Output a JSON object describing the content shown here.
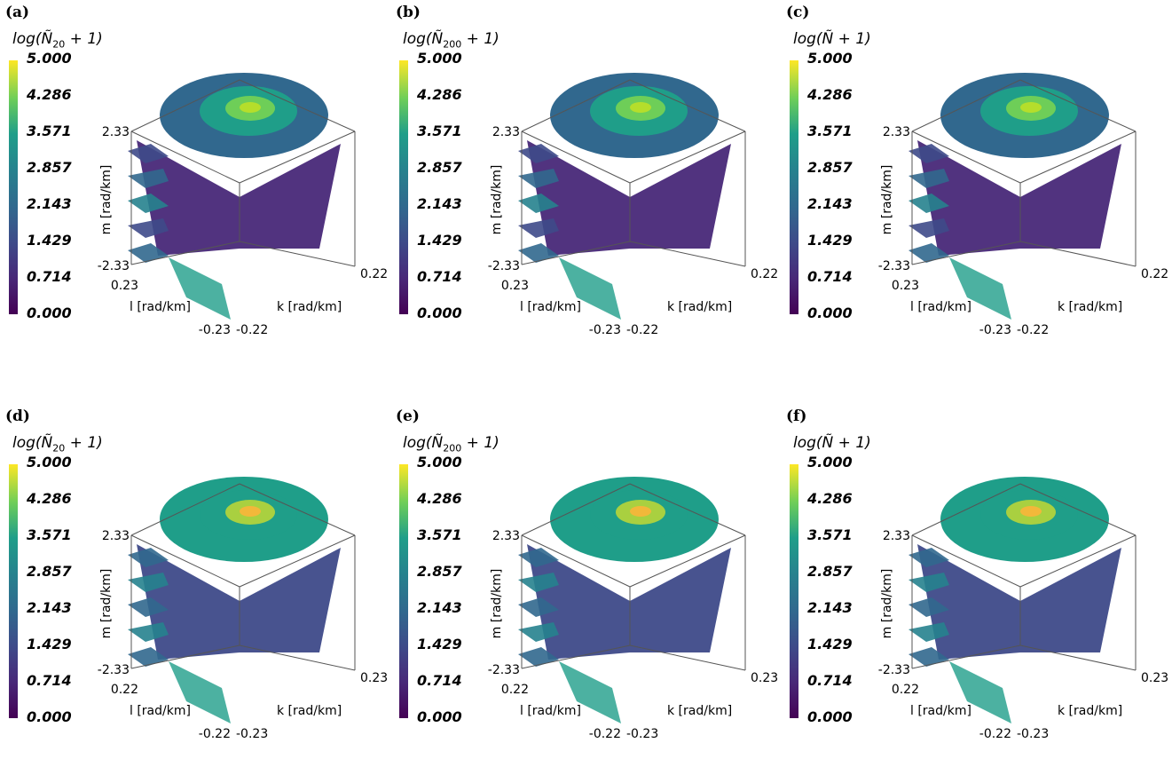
{
  "colors": {
    "viridis": [
      "#440154",
      "#482878",
      "#3e4a89",
      "#31688e",
      "#26828e",
      "#1f9e89",
      "#6ece58",
      "#fde725"
    ],
    "cube_edge": "#555555"
  },
  "colorbar_ticks": [
    "5.000",
    "4.286",
    "3.571",
    "2.857",
    "2.143",
    "1.429",
    "0.714",
    "0.000"
  ],
  "chart_data": [
    {
      "type": "heatmap",
      "panel": "(a)",
      "colorbar_title": "log(Ñ20 + 1)",
      "colorbar_range": [
        0,
        5
      ],
      "ylabel": "m [rad/km]",
      "xlabel": "l [rad/km]",
      "zlabel": "k [rad/km]",
      "m_ticks": [
        "2.33",
        "-2.33"
      ],
      "l_ticks": [
        "0.23",
        "-0.23"
      ],
      "k_ticks": [
        "0.22",
        "-0.22"
      ]
    },
    {
      "type": "heatmap",
      "panel": "(b)",
      "colorbar_title": "log(Ñ200 + 1)",
      "colorbar_range": [
        0,
        5
      ],
      "ylabel": "m [rad/km]",
      "xlabel": "l [rad/km]",
      "zlabel": "k [rad/km]",
      "m_ticks": [
        "2.33",
        "-2.33"
      ],
      "l_ticks": [
        "0.23",
        "-0.23"
      ],
      "k_ticks": [
        "0.22",
        "-0.22"
      ]
    },
    {
      "type": "heatmap",
      "panel": "(c)",
      "colorbar_title": "log(Ñ + 1)",
      "colorbar_range": [
        0,
        5
      ],
      "ylabel": "m [rad/km]",
      "xlabel": "l [rad/km]",
      "zlabel": "k [rad/km]",
      "m_ticks": [
        "2.33",
        "-2.33"
      ],
      "l_ticks": [
        "0.23",
        "-0.23"
      ],
      "k_ticks": [
        "0.22",
        "-0.22"
      ]
    },
    {
      "type": "heatmap",
      "panel": "(d)",
      "colorbar_title": "log(Ñ20 + 1)",
      "colorbar_range": [
        0,
        5
      ],
      "ylabel": "m [rad/km]",
      "xlabel": "l [rad/km]",
      "zlabel": "k [rad/km]",
      "m_ticks": [
        "2.33",
        "-2.33"
      ],
      "l_ticks": [
        "0.22",
        "-0.22"
      ],
      "k_ticks": [
        "0.23",
        "-0.23"
      ]
    },
    {
      "type": "heatmap",
      "panel": "(e)",
      "colorbar_title": "log(Ñ200 + 1)",
      "colorbar_range": [
        0,
        5
      ],
      "ylabel": "m [rad/km]",
      "xlabel": "l [rad/km]",
      "zlabel": "k [rad/km]",
      "m_ticks": [
        "2.33",
        "-2.33"
      ],
      "l_ticks": [
        "0.22",
        "-0.22"
      ],
      "k_ticks": [
        "0.23",
        "-0.23"
      ]
    },
    {
      "type": "heatmap",
      "panel": "(f)",
      "colorbar_title": "log(Ñ + 1)",
      "colorbar_range": [
        0,
        5
      ],
      "ylabel": "m [rad/km]",
      "xlabel": "l [rad/km]",
      "zlabel": "k [rad/km]",
      "m_ticks": [
        "2.33",
        "-2.33"
      ],
      "l_ticks": [
        "0.22",
        "-0.22"
      ],
      "k_ticks": [
        "0.23",
        "-0.23"
      ]
    }
  ],
  "panels": [
    {
      "label": "(a)",
      "cb_sub": "20",
      "style": "a"
    },
    {
      "label": "(b)",
      "cb_sub": "200",
      "style": "b"
    },
    {
      "label": "(c)",
      "cb_sub": "",
      "style": "c"
    },
    {
      "label": "(d)",
      "cb_sub": "20",
      "style": "d"
    },
    {
      "label": "(e)",
      "cb_sub": "200",
      "style": "e"
    },
    {
      "label": "(f)",
      "cb_sub": "",
      "style": "f"
    }
  ]
}
